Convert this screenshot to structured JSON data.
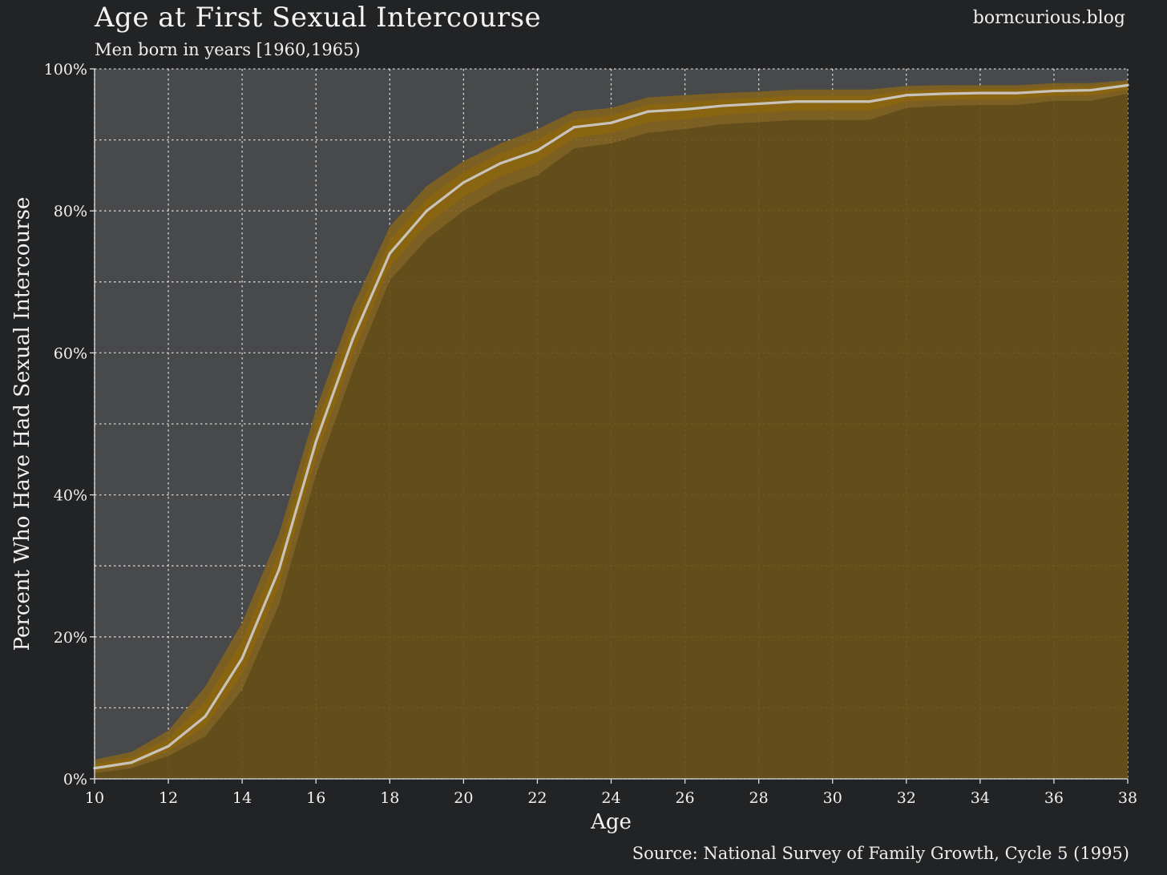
{
  "header": {
    "title": "Age at First Sexual Intercourse",
    "subtitle": "Men born in years [1960,1965)",
    "site": "borncurious.blog"
  },
  "footer": {
    "source": "Source: National Survey of Family Growth, Cycle 5 (1995)"
  },
  "colors": {
    "background": "#222325",
    "plot_background": "#48494b",
    "fill": "#654e17",
    "band": "#8a6411",
    "band_outer": "#82621e",
    "line": "#c9c4bb",
    "grid": "#e6e6e6"
  },
  "chart_data": {
    "type": "area",
    "title": "Age at First Sexual Intercourse",
    "subtitle": "Men born in years [1960,1965)",
    "xlabel": "Age",
    "ylabel": "Percent Who Have Had Sexual Intercourse",
    "xlim": [
      10,
      38
    ],
    "ylim": [
      0,
      100
    ],
    "x_ticks": [
      10,
      12,
      14,
      16,
      18,
      20,
      22,
      24,
      26,
      28,
      30,
      32,
      34,
      36,
      38
    ],
    "x_tick_labels": [
      "10",
      "12",
      "14",
      "16",
      "18",
      "20",
      "22",
      "24",
      "26",
      "28",
      "30",
      "32",
      "34",
      "36",
      "38"
    ],
    "y_ticks": [
      0,
      20,
      40,
      60,
      80,
      100
    ],
    "y_tick_labels": [
      "0%",
      "20%",
      "40%",
      "60%",
      "80%",
      "100%"
    ],
    "grid": true,
    "x": [
      10,
      11,
      12,
      13,
      14,
      15,
      16,
      17,
      18,
      19,
      20,
      21,
      22,
      23,
      24,
      25,
      26,
      27,
      28,
      29,
      30,
      31,
      32,
      33,
      34,
      35,
      36,
      37,
      38
    ],
    "series": [
      {
        "values": [
          1.5,
          2.3,
          4.6,
          8.8,
          17.0,
          29.5,
          47.5,
          62.0,
          74.0,
          80.0,
          84.0,
          86.7,
          88.5,
          91.8,
          92.4,
          94.0,
          94.3,
          94.8,
          95.1,
          95.4,
          95.4,
          95.4,
          96.3,
          96.5,
          96.6,
          96.6,
          96.9,
          97.0,
          97.7
        ],
        "lower_90": [
          0.8,
          1.5,
          3.2,
          6.0,
          12.5,
          24.5,
          42.8,
          57.5,
          70.2,
          76.0,
          80.0,
          83.0,
          85.0,
          88.8,
          89.5,
          91.0,
          91.5,
          92.2,
          92.5,
          92.8,
          92.8,
          92.8,
          94.5,
          94.8,
          94.9,
          94.9,
          95.5,
          95.5,
          96.5
        ],
        "upper_90": [
          2.7,
          3.8,
          6.8,
          13.0,
          22.0,
          34.5,
          52.0,
          66.5,
          77.8,
          83.5,
          87.0,
          89.5,
          91.5,
          94.0,
          94.5,
          96.0,
          96.3,
          96.6,
          96.8,
          97.1,
          97.1,
          97.1,
          97.6,
          97.7,
          97.7,
          97.7,
          98.0,
          98.0,
          98.4
        ]
      }
    ]
  }
}
